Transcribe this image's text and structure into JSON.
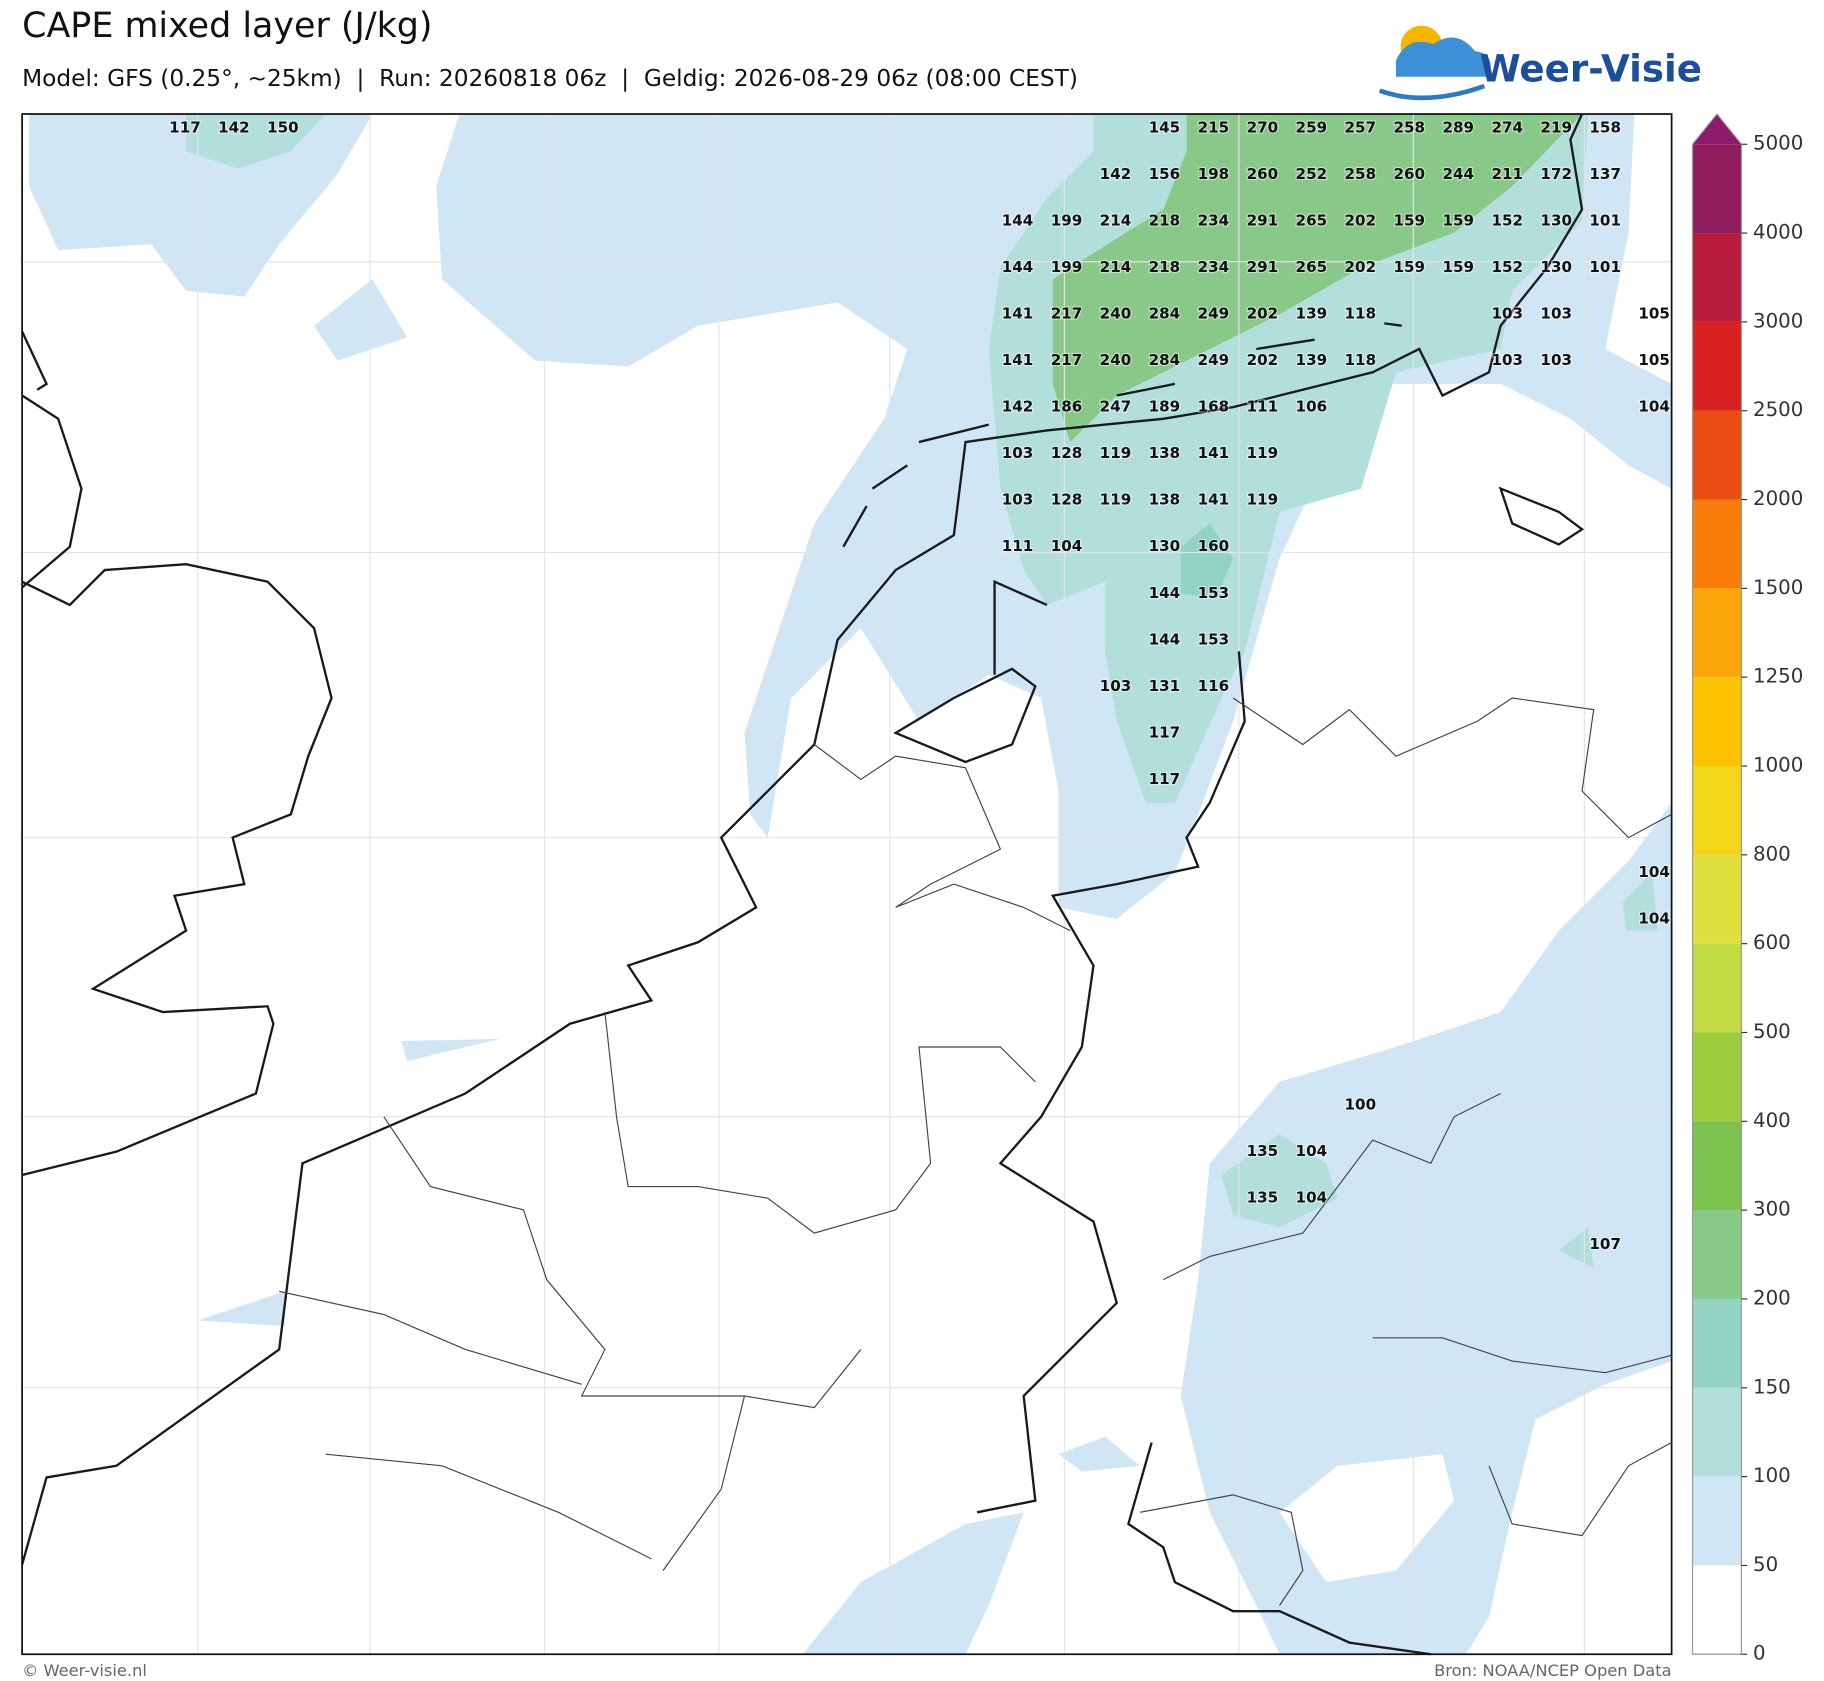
{
  "title": "CAPE mixed layer (J/kg)",
  "subtitle": "Model: GFS (0.25°, ~25km)  |  Run: 20260818 06z  |  Geldig: 2026-08-29 06z (08:00 CEST)",
  "logo_text": "Weer-Visie",
  "footer_left": "© Weer-visie.nl",
  "footer_right": "Bron: NOAA/NCEP Open Data",
  "colorbar": {
    "levels": [
      0,
      50,
      100,
      150,
      200,
      300,
      400,
      500,
      600,
      800,
      1000,
      1250,
      1500,
      2000,
      2500,
      3000,
      4000,
      5000
    ],
    "colors": [
      "#ffffff",
      "#d0e6f5",
      "#b2dfdb",
      "#93d3c3",
      "#88c98a",
      "#7dc24f",
      "#9ccc3f",
      "#c4dc44",
      "#dfe03d",
      "#f3d51a",
      "#fcc400",
      "#fca60c",
      "#f77c0a",
      "#ea4d12",
      "#d92020",
      "#b81c3a",
      "#8f1c5e"
    ],
    "extend_color": "#8e1a6b"
  },
  "labels": [
    [
      117,
      142,
      150,
      null,
      null,
      null,
      null,
      null,
      null,
      null,
      null,
      null,
      null,
      null,
      null,
      null,
      null,
      null,
      null,
      null,
      145,
      215,
      270,
      259,
      257,
      258,
      289,
      274,
      219,
      158
    ],
    [
      null,
      null,
      null,
      null,
      null,
      null,
      null,
      null,
      null,
      null,
      null,
      null,
      null,
      null,
      null,
      null,
      null,
      null,
      null,
      142,
      156,
      198,
      260,
      252,
      258,
      260,
      244,
      211,
      172,
      137
    ],
    [
      null,
      null,
      null,
      null,
      null,
      null,
      null,
      null,
      null,
      null,
      null,
      null,
      null,
      null,
      null,
      null,
      null,
      144,
      199,
      214,
      218,
      234,
      291,
      265,
      202,
      159,
      159,
      152,
      130,
      101
    ],
    [
      null,
      null,
      null,
      null,
      null,
      null,
      null,
      null,
      null,
      null,
      null,
      null,
      null,
      null,
      null,
      null,
      null,
      144,
      199,
      214,
      218,
      234,
      291,
      265,
      202,
      159,
      159,
      152,
      130,
      101
    ],
    [
      null,
      null,
      null,
      null,
      null,
      null,
      null,
      null,
      null,
      null,
      null,
      null,
      null,
      null,
      null,
      null,
      null,
      141,
      217,
      240,
      284,
      249,
      202,
      139,
      118,
      null,
      null,
      103,
      103,
      null,
      105
    ],
    [
      null,
      null,
      null,
      null,
      null,
      null,
      null,
      null,
      null,
      null,
      null,
      null,
      null,
      null,
      null,
      null,
      null,
      141,
      217,
      240,
      284,
      249,
      202,
      139,
      118,
      null,
      null,
      103,
      103,
      null,
      105
    ],
    [
      null,
      null,
      null,
      null,
      null,
      null,
      null,
      null,
      null,
      null,
      null,
      null,
      null,
      null,
      null,
      null,
      null,
      142,
      186,
      247,
      189,
      168,
      111,
      106,
      null,
      null,
      null,
      null,
      null,
      null,
      104
    ],
    [
      null,
      null,
      null,
      null,
      null,
      null,
      null,
      null,
      null,
      null,
      null,
      null,
      null,
      null,
      null,
      null,
      null,
      103,
      128,
      119,
      138,
      141,
      119
    ],
    [
      null,
      null,
      null,
      null,
      null,
      null,
      null,
      null,
      null,
      null,
      null,
      null,
      null,
      null,
      null,
      null,
      null,
      103,
      128,
      119,
      138,
      141,
      119
    ],
    [
      null,
      null,
      null,
      null,
      null,
      null,
      null,
      null,
      null,
      null,
      null,
      null,
      null,
      null,
      null,
      null,
      null,
      111,
      104,
      null,
      130,
      160
    ],
    [
      null,
      null,
      null,
      null,
      null,
      null,
      null,
      null,
      null,
      null,
      null,
      null,
      null,
      null,
      null,
      null,
      null,
      null,
      null,
      null,
      144,
      153
    ],
    [
      null,
      null,
      null,
      null,
      null,
      null,
      null,
      null,
      null,
      null,
      null,
      null,
      null,
      null,
      null,
      null,
      null,
      null,
      null,
      null,
      144,
      153
    ],
    [
      null,
      null,
      null,
      null,
      null,
      null,
      null,
      null,
      null,
      null,
      null,
      null,
      null,
      null,
      null,
      null,
      null,
      null,
      null,
      103,
      131,
      116
    ],
    [
      null,
      null,
      null,
      null,
      null,
      null,
      null,
      null,
      null,
      null,
      null,
      null,
      null,
      null,
      null,
      null,
      null,
      null,
      null,
      null,
      117
    ],
    [
      null,
      null,
      null,
      null,
      null,
      null,
      null,
      null,
      null,
      null,
      null,
      null,
      null,
      null,
      null,
      null,
      null,
      null,
      null,
      null,
      117
    ],
    [],
    [
      null,
      null,
      null,
      null,
      null,
      null,
      null,
      null,
      null,
      null,
      null,
      null,
      null,
      null,
      null,
      null,
      null,
      null,
      null,
      null,
      null,
      null,
      null,
      null,
      null,
      null,
      null,
      null,
      null,
      null,
      104
    ],
    [
      null,
      null,
      null,
      null,
      null,
      null,
      null,
      null,
      null,
      null,
      null,
      null,
      null,
      null,
      null,
      null,
      null,
      null,
      null,
      null,
      null,
      null,
      null,
      null,
      null,
      null,
      null,
      null,
      null,
      null,
      104
    ],
    [],
    [],
    [],
    [
      null,
      null,
      null,
      null,
      null,
      null,
      null,
      null,
      null,
      null,
      null,
      null,
      null,
      null,
      null,
      null,
      null,
      null,
      null,
      null,
      null,
      null,
      null,
      null,
      100
    ],
    [
      null,
      null,
      null,
      null,
      null,
      null,
      null,
      null,
      null,
      null,
      null,
      null,
      null,
      null,
      null,
      null,
      null,
      null,
      null,
      null,
      null,
      null,
      135,
      104
    ],
    [
      null,
      null,
      null,
      null,
      null,
      null,
      null,
      null,
      null,
      null,
      null,
      null,
      null,
      null,
      null,
      null,
      null,
      null,
      null,
      null,
      null,
      null,
      135,
      104
    ],
    [
      null,
      null,
      null,
      null,
      null,
      null,
      null,
      null,
      null,
      null,
      null,
      null,
      null,
      null,
      null,
      null,
      null,
      null,
      null,
      null,
      null,
      null,
      null,
      null,
      null,
      null,
      null,
      null,
      null,
      107
    ]
  ]
}
